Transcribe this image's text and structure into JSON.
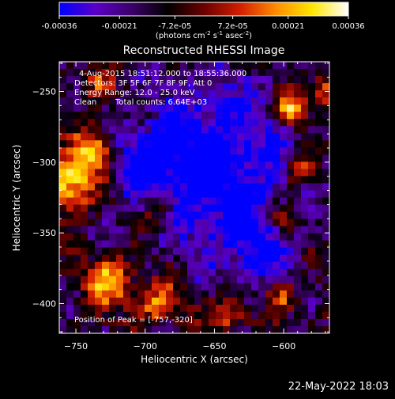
{
  "colorbar": {
    "tick_labels": [
      "-0.00036",
      "-0.00021",
      "-7.2e-05",
      "7.2e-05",
      "0.00021",
      "0.00036"
    ],
    "tick_values": [
      -0.00036,
      -0.00021,
      -7.2e-05,
      7.2e-05,
      0.00021,
      0.00036
    ],
    "range": [
      -0.00036,
      0.00036
    ],
    "units_main": "(photons cm",
    "units_sup1": "-2",
    "units_mid1": " s",
    "units_sup2": "-1",
    "units_mid2": " asec",
    "units_sup3": "-2",
    "units_end": ")",
    "colors": [
      "#0000ff",
      "#5a00c8",
      "#3c006a",
      "#000000",
      "#6a0000",
      "#d21e00",
      "#ff8c00",
      "#ffe600",
      "#ffffff"
    ]
  },
  "chart_data": {
    "type": "heatmap",
    "title": "Reconstructed RHESSI Image",
    "xlabel": "Heliocentric X (arcsec)",
    "ylabel": "Heliocentric Y (arcsec)",
    "xlim": [
      -762,
      -567
    ],
    "ylim": [
      -421,
      -229
    ],
    "x_ticks": [
      -750,
      -700,
      -650,
      -600
    ],
    "y_ticks": [
      -400,
      -350,
      -300,
      -250
    ],
    "x_tick_labels": [
      "−750",
      "−700",
      "−650",
      "−600"
    ],
    "y_tick_labels": [
      "−400",
      "−350",
      "−300",
      "−250"
    ],
    "peak": {
      "x": -757,
      "y": -320
    },
    "bright_sources": [
      {
        "x": -755,
        "y": -315,
        "r": 14,
        "amp": 1.0
      },
      {
        "x": -735,
        "y": -290,
        "r": 10,
        "amp": 0.85
      },
      {
        "x": -725,
        "y": -385,
        "r": 12,
        "amp": 0.8
      },
      {
        "x": -690,
        "y": -400,
        "r": 10,
        "amp": 0.7
      },
      {
        "x": -640,
        "y": -408,
        "r": 8,
        "amp": 0.7
      },
      {
        "x": -595,
        "y": -262,
        "r": 8,
        "amp": 0.9
      },
      {
        "x": -570,
        "y": -250,
        "r": 8,
        "amp": 0.7
      },
      {
        "x": -588,
        "y": -305,
        "r": 8,
        "amp": 0.75
      },
      {
        "x": -600,
        "y": -340,
        "r": 8,
        "amp": 0.55
      },
      {
        "x": -690,
        "y": -335,
        "r": 8,
        "amp": 0.55
      },
      {
        "x": -735,
        "y": -245,
        "r": 8,
        "amp": 0.5
      },
      {
        "x": -600,
        "y": -395,
        "r": 7,
        "amp": 0.55
      }
    ],
    "dark_regions": [
      {
        "x": -650,
        "y": -300,
        "r": 40,
        "amp": -0.75
      },
      {
        "x": -700,
        "y": -300,
        "r": 18,
        "amp": -0.45
      },
      {
        "x": -620,
        "y": -360,
        "r": 20,
        "amp": -0.45
      }
    ]
  },
  "info": {
    "time_range": "4-Aug-2015 18:51:12.000 to 18:55:36.000",
    "detectors": "Detectors: 3F 5F 6F 7F 8F 9F, Att 0",
    "energy": "Energy Range: 12.0 - 25.0 keV",
    "method": "Clean",
    "counts": "Total counts: 6.64E+03",
    "peak_label": "Position of Peak = [-757,-320]"
  },
  "footer": {
    "date": "22-May-2022 18:03"
  }
}
